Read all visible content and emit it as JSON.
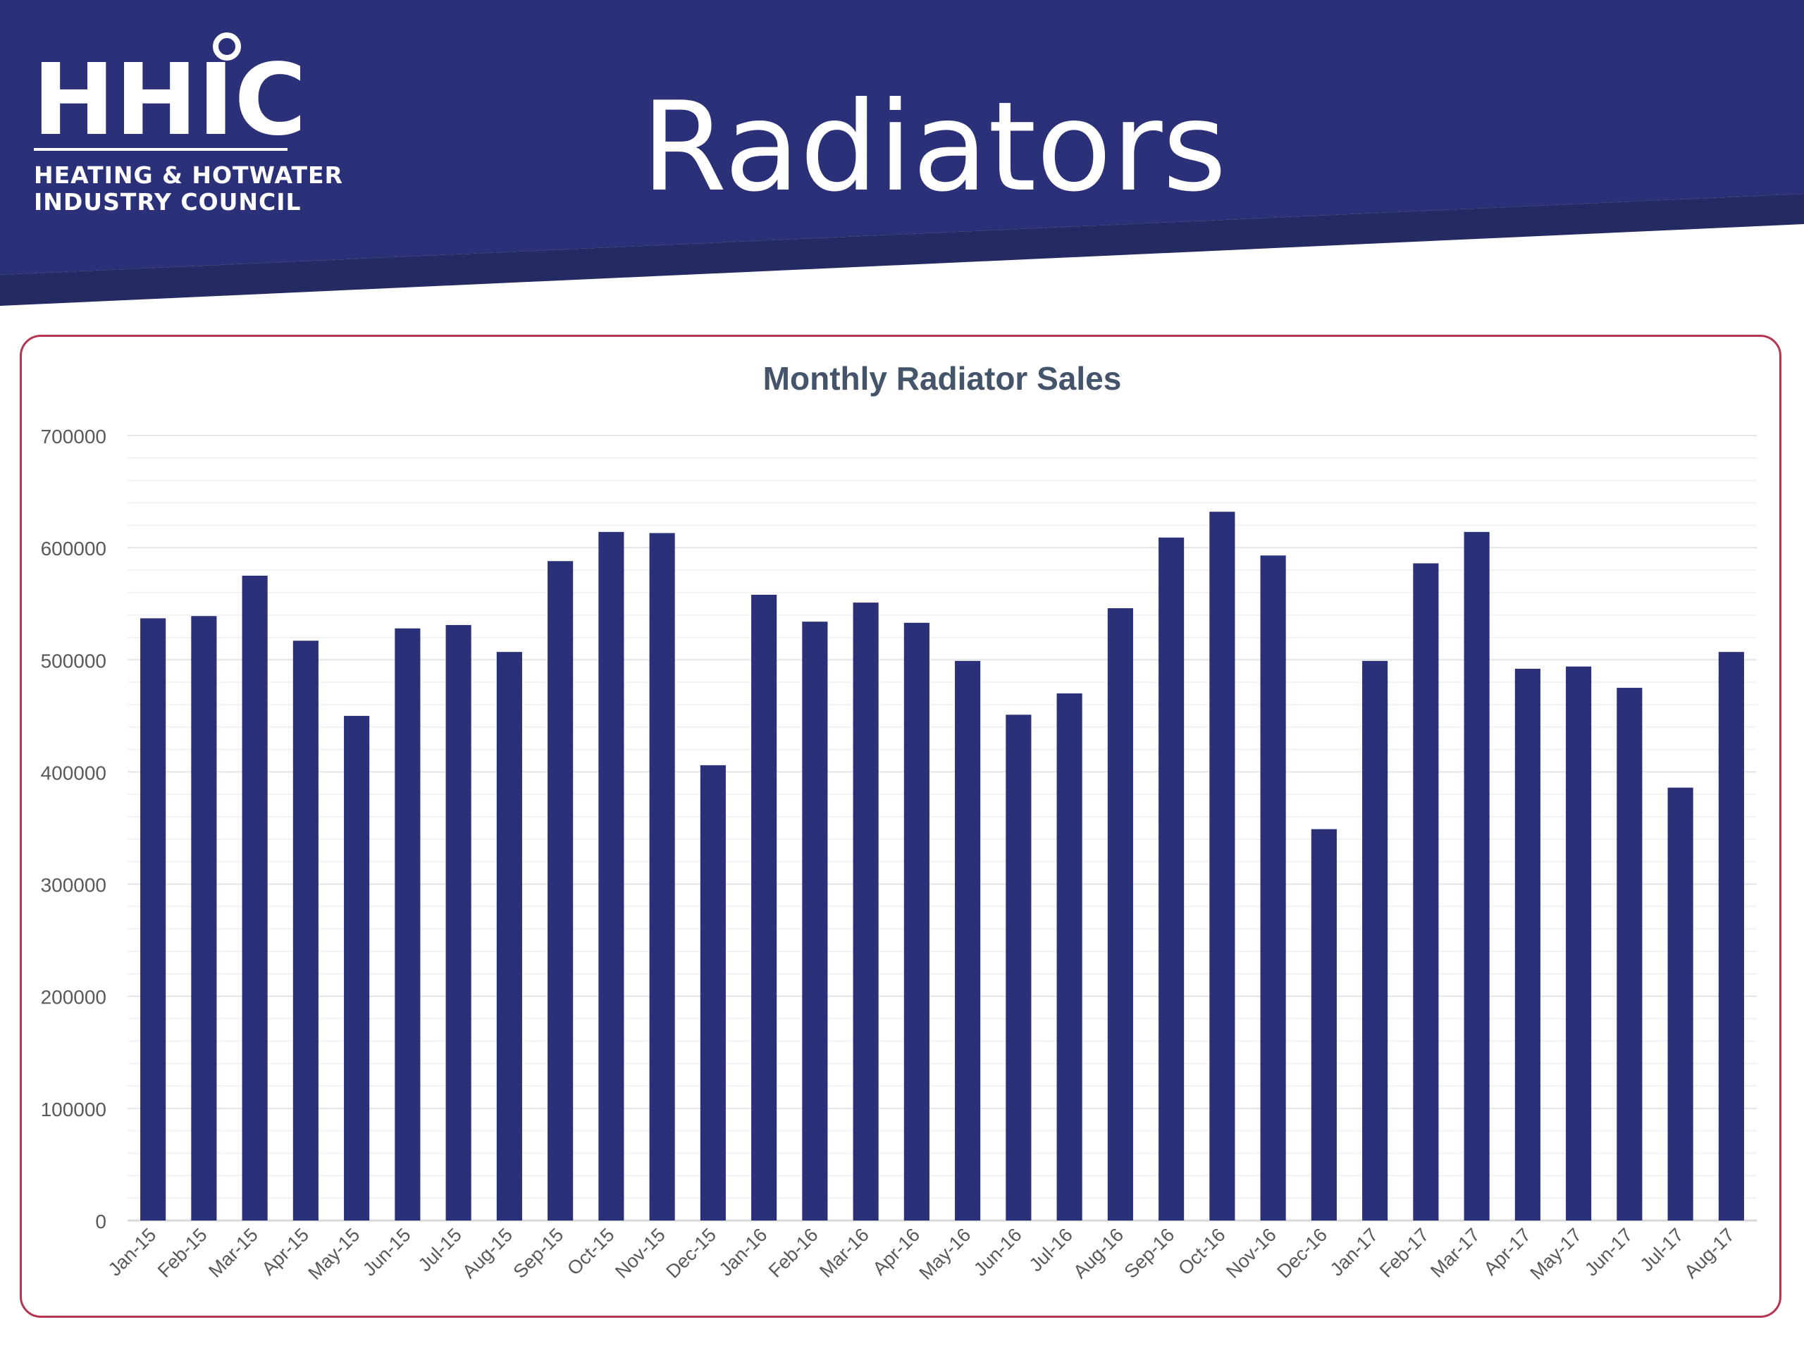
{
  "header": {
    "logo_mark": "HHIC",
    "logo_line1": "HEATING & HOTWATER",
    "logo_line2": "INDUSTRY COUNCIL",
    "title": "Radiators"
  },
  "colors": {
    "brand_navy": "#2a3178",
    "bar": "#2a3178",
    "card_border": "#b5344f",
    "title_text": "#44546a",
    "axis_text": "#595959",
    "grid": "#e6e6e6"
  },
  "chart_data": {
    "type": "bar",
    "title": "Monthly Radiator Sales",
    "xlabel": "",
    "ylabel": "",
    "ylim": [
      0,
      700000
    ],
    "yticks": [
      0,
      100000,
      200000,
      300000,
      400000,
      500000,
      600000,
      700000
    ],
    "grid": true,
    "legend": "none",
    "categories": [
      "Jan-15",
      "Feb-15",
      "Mar-15",
      "Apr-15",
      "May-15",
      "Jun-15",
      "Jul-15",
      "Aug-15",
      "Sep-15",
      "Oct-15",
      "Nov-15",
      "Dec-15",
      "Jan-16",
      "Feb-16",
      "Mar-16",
      "Apr-16",
      "May-16",
      "Jun-16",
      "Jul-16",
      "Aug-16",
      "Sep-16",
      "Oct-16",
      "Nov-16",
      "Dec-16",
      "Jan-17",
      "Feb-17",
      "Mar-17",
      "Apr-17",
      "May-17",
      "Jun-17",
      "Jul-17",
      "Aug-17"
    ],
    "values": [
      537000,
      539000,
      575000,
      517000,
      450000,
      528000,
      531000,
      507000,
      588000,
      614000,
      613000,
      406000,
      558000,
      534000,
      551000,
      533000,
      499000,
      451000,
      470000,
      546000,
      609000,
      632000,
      593000,
      349000,
      499000,
      586000,
      614000,
      492000,
      494000,
      475000,
      386000,
      507000
    ]
  }
}
